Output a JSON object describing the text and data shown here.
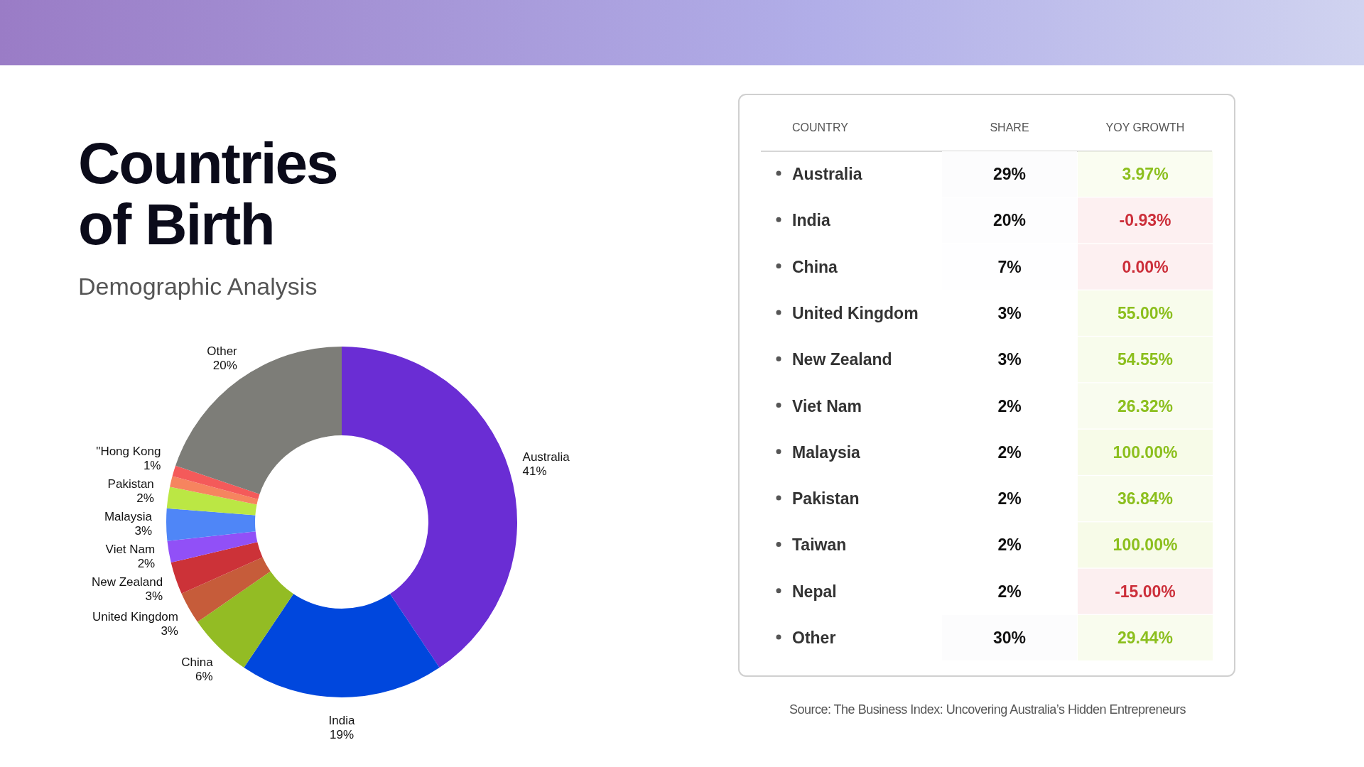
{
  "chart_data": [
    {
      "type": "donut",
      "title": "Countries\nof Birth",
      "subtitle": "Demographic Analysis",
      "categories": [
        "Australia",
        "India",
        "China",
        "United Kingdom",
        "New Zealand",
        "Viet Nam",
        "Malaysia",
        "Pakistan",
        null,
        "\"Hong Kong",
        "Other"
      ],
      "values": [
        41,
        19,
        6,
        3,
        3,
        2,
        3,
        2,
        1,
        1,
        20
      ],
      "colors": [
        "#6a2dd4",
        "#0047dd",
        "#93bc24",
        "#c65c3a",
        "#cc3238",
        "#9150f7",
        "#4f86f7",
        "#bbe744",
        "#f6845f",
        "#f45a5a",
        "#7d7d78"
      ],
      "value_labels": [
        "41%",
        "19%",
        "6%",
        "3%",
        "3%",
        "2%",
        "3%",
        "2%",
        null,
        "1%",
        "20%"
      ]
    },
    {
      "type": "heatmap",
      "ylabel": "COUNTRY",
      "categories": [
        "SHARE",
        "YOY GROWTH"
      ],
      "y_categories": [
        "Australia",
        "India",
        "China",
        "United Kingdom",
        "New Zealand",
        "Viet Nam",
        "Malaysia",
        "Pakistan",
        "Taiwan",
        "Nepal",
        "Other"
      ],
      "cells": [
        [
          29,
          3.97
        ],
        [
          20,
          -0.93
        ],
        [
          7,
          0.0
        ],
        [
          3,
          55.0
        ],
        [
          3,
          54.55
        ],
        [
          2,
          26.32
        ],
        [
          2,
          100.0
        ],
        [
          2,
          36.84
        ],
        [
          2,
          100.0
        ],
        [
          2,
          -15.0
        ],
        [
          30,
          29.44
        ]
      ],
      "cell_labels": [
        [
          "29%",
          "3.97%"
        ],
        [
          "20%",
          "-0.93%"
        ],
        [
          "7%",
          "0.00%"
        ],
        [
          "3%",
          "55.00%"
        ],
        [
          "3%",
          "54.55%"
        ],
        [
          "2%",
          "26.32%"
        ],
        [
          "2%",
          "100.00%"
        ],
        [
          "2%",
          "36.84%"
        ],
        [
          "2%",
          "100.00%"
        ],
        [
          "2%",
          "-15.00%"
        ],
        [
          "30%",
          "29.44%"
        ]
      ],
      "annotations": [
        "Source: The Business Index: Uncovering Australia’s Hidden Entrepreneurs"
      ]
    }
  ]
}
